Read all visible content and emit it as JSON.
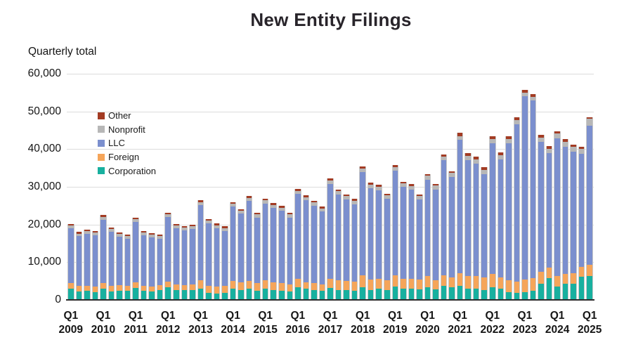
{
  "title": "New Entity Filings",
  "y_axis_title": "Quarterly total",
  "colors": {
    "corporation": "#18b09f",
    "foreign": "#f5a55a",
    "llc": "#7b8fce",
    "nonprofit": "#b7b7b7",
    "other": "#a33b23",
    "gridline": "#dcdcdc",
    "baseline": "#2d2d2d",
    "title_text": "#28242a",
    "axis_text": "#141414"
  },
  "legend": [
    {
      "label": "Other",
      "color": "#a33b23"
    },
    {
      "label": "Nonprofit",
      "color": "#b7b7b7"
    },
    {
      "label": "LLC",
      "color": "#7b8fce"
    },
    {
      "label": "Foreign",
      "color": "#f5a55a"
    },
    {
      "label": "Corporation",
      "color": "#18b09f"
    }
  ],
  "y_ticks": [
    {
      "value": 60000,
      "label": "60,000"
    },
    {
      "value": 50000,
      "label": "50,000"
    },
    {
      "value": 40000,
      "label": "40,000"
    },
    {
      "value": 30000,
      "label": "30,000"
    },
    {
      "value": 20000,
      "label": "20,000"
    },
    {
      "value": 10000,
      "label": "10,000"
    },
    {
      "value": 0,
      "label": "0"
    }
  ],
  "x_ticks": [
    {
      "quarter": "Q1",
      "year": "2009"
    },
    {
      "quarter": "Q1",
      "year": "2010"
    },
    {
      "quarter": "Q1",
      "year": "2011"
    },
    {
      "quarter": "Q1",
      "year": "2012"
    },
    {
      "quarter": "Q1",
      "year": "2013"
    },
    {
      "quarter": "Q1",
      "year": "2014"
    },
    {
      "quarter": "Q1",
      "year": "2015"
    },
    {
      "quarter": "Q1",
      "year": "2016"
    },
    {
      "quarter": "Q1",
      "year": "2017"
    },
    {
      "quarter": "Q1",
      "year": "2018"
    },
    {
      "quarter": "Q1",
      "year": "2019"
    },
    {
      "quarter": "Q1",
      "year": "2020"
    },
    {
      "quarter": "Q1",
      "year": "2021"
    },
    {
      "quarter": "Q1",
      "year": "2022"
    },
    {
      "quarter": "Q1",
      "year": "2023"
    },
    {
      "quarter": "Q1",
      "year": "2024"
    },
    {
      "quarter": "Q1",
      "year": "2025"
    }
  ],
  "chart_data": {
    "type": "bar",
    "stacked": true,
    "title": "New Entity Filings",
    "subtitle": "Quarterly total",
    "ylim": [
      0,
      60000
    ],
    "grid": true,
    "legend_position": "upper-left inside plot",
    "x_tick_note": "only Q1 of each year is labeled on the x-axis",
    "categories": [
      "Q1 2009",
      "Q2 2009",
      "Q3 2009",
      "Q4 2009",
      "Q1 2010",
      "Q2 2010",
      "Q3 2010",
      "Q4 2010",
      "Q1 2011",
      "Q2 2011",
      "Q3 2011",
      "Q4 2011",
      "Q1 2012",
      "Q2 2012",
      "Q3 2012",
      "Q4 2012",
      "Q1 2013",
      "Q2 2013",
      "Q3 2013",
      "Q4 2013",
      "Q1 2014",
      "Q2 2014",
      "Q3 2014",
      "Q4 2014",
      "Q1 2015",
      "Q2 2015",
      "Q3 2015",
      "Q4 2015",
      "Q1 2016",
      "Q2 2016",
      "Q3 2016",
      "Q4 2016",
      "Q1 2017",
      "Q2 2017",
      "Q3 2017",
      "Q4 2017",
      "Q1 2018",
      "Q2 2018",
      "Q3 2018",
      "Q4 2018",
      "Q1 2019",
      "Q2 2019",
      "Q3 2019",
      "Q4 2019",
      "Q1 2020",
      "Q2 2020",
      "Q3 2020",
      "Q4 2020",
      "Q1 2021",
      "Q2 2021",
      "Q3 2021",
      "Q4 2021",
      "Q1 2022",
      "Q2 2022",
      "Q3 2022",
      "Q4 2022",
      "Q1 2023",
      "Q2 2023",
      "Q3 2023",
      "Q4 2023",
      "Q1 2024",
      "Q2 2024",
      "Q3 2024",
      "Q4 2024",
      "Q1 2025"
    ],
    "series": [
      {
        "name": "Corporation",
        "color": "#18b09f",
        "values": [
          3000,
          2300,
          2400,
          2100,
          2900,
          2200,
          2500,
          2400,
          3200,
          2400,
          2200,
          2600,
          3300,
          2700,
          2600,
          2700,
          3000,
          1900,
          1600,
          1800,
          2900,
          2700,
          3000,
          2500,
          2900,
          2700,
          2400,
          2200,
          3300,
          2900,
          2700,
          2400,
          3200,
          2700,
          2600,
          2400,
          3300,
          2700,
          2900,
          2600,
          3500,
          3000,
          3000,
          2700,
          3300,
          2700,
          3800,
          3300,
          3800,
          3000,
          3000,
          2700,
          3300,
          2900,
          2100,
          1900,
          2000,
          2400,
          4300,
          5800,
          3500,
          4200,
          4300,
          6200,
          6300
        ]
      },
      {
        "name": "Foreign",
        "color": "#f5a55a",
        "values": [
          1400,
          1400,
          1400,
          1400,
          1500,
          1600,
          1400,
          1400,
          1400,
          1400,
          1400,
          1300,
          1600,
          1400,
          1400,
          1400,
          2200,
          1900,
          1900,
          1900,
          2100,
          1900,
          2000,
          1900,
          2300,
          2000,
          2000,
          1900,
          2200,
          1800,
          1700,
          1700,
          2300,
          2500,
          2400,
          2500,
          3300,
          2700,
          2600,
          2600,
          3100,
          2500,
          2600,
          2700,
          3000,
          2500,
          2800,
          2700,
          3300,
          3400,
          3400,
          3200,
          3600,
          3100,
          3100,
          2900,
          3400,
          3300,
          3100,
          2700,
          2900,
          2700,
          2700,
          2600,
          3100
        ]
      },
      {
        "name": "LLC",
        "color": "#7b8fce",
        "values": [
          14700,
          13200,
          13700,
          13700,
          16900,
          14300,
          12900,
          12500,
          16100,
          13400,
          13000,
          12300,
          17100,
          15000,
          14500,
          14800,
          19900,
          16450,
          15550,
          14550,
          19700,
          18250,
          21250,
          17450,
          20400,
          19750,
          19250,
          17750,
          22600,
          21750,
          20650,
          19350,
          25300,
          22700,
          21600,
          20500,
          27400,
          24300,
          23600,
          21600,
          27700,
          24500,
          23700,
          21200,
          25600,
          24100,
          30400,
          26700,
          35300,
          30600,
          29700,
          27500,
          34700,
          31200,
          36300,
          41800,
          48650,
          47150,
          34500,
          30400,
          36400,
          33800,
          32300,
          29900,
          36800
        ]
      },
      {
        "name": "Nonprofit",
        "color": "#b7b7b7",
        "values": [
          700,
          700,
          700,
          700,
          700,
          700,
          700,
          700,
          700,
          700,
          700,
          700,
          700,
          700,
          700,
          700,
          800,
          800,
          800,
          800,
          800,
          800,
          800,
          800,
          800,
          800,
          800,
          800,
          800,
          800,
          800,
          800,
          900,
          900,
          900,
          900,
          900,
          900,
          900,
          900,
          900,
          900,
          900,
          900,
          1000,
          1000,
          1000,
          1000,
          1100,
          1100,
          1100,
          1100,
          1100,
          1100,
          1100,
          1100,
          1000,
          1000,
          1200,
          1200,
          1300,
          1300,
          1300,
          1300,
          1900
        ]
      },
      {
        "name": "Other",
        "color": "#a33b23",
        "values": [
          400,
          400,
          400,
          400,
          500,
          400,
          400,
          400,
          500,
          400,
          400,
          400,
          500,
          400,
          400,
          400,
          500,
          450,
          450,
          450,
          500,
          450,
          450,
          450,
          500,
          450,
          450,
          450,
          500,
          450,
          450,
          450,
          500,
          500,
          500,
          500,
          500,
          500,
          500,
          500,
          500,
          500,
          500,
          500,
          500,
          500,
          500,
          500,
          800,
          800,
          800,
          800,
          800,
          800,
          800,
          800,
          750,
          750,
          700,
          700,
          600,
          600,
          600,
          600,
          300
        ]
      }
    ]
  }
}
